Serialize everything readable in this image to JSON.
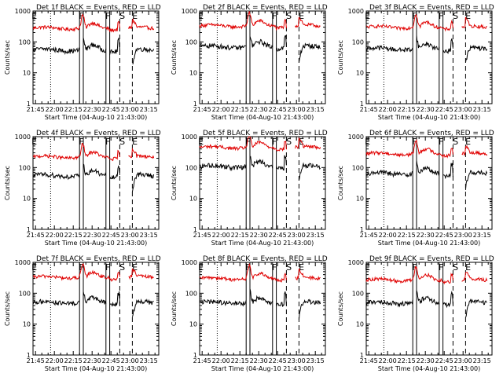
{
  "figure": {
    "xlabel_template": "Start Time (04-Aug-10 21:43:00)",
    "ylabel": "Counts/sec",
    "title_suffix": " BLACK = Events, RED = LLD",
    "tick_labels_x": [
      "21:45",
      "22:00",
      "22:15",
      "22:30",
      "22:45",
      "23:00",
      "23:15"
    ],
    "tick_labels_y": [
      "1000",
      "100",
      "10",
      "1"
    ],
    "colors": {
      "events": "#000000",
      "lld": "#e00000",
      "axes": "#000000"
    },
    "marker_letters": {
      "front": "F",
      "saa": "S",
      "eclipse": "E"
    }
  },
  "chart_data": [
    {
      "type": "line",
      "title": "Det 1f BLACK = Events, RED = LLD",
      "xlabel": "Start Time (04-Aug-10 21:43:00)",
      "ylabel": "Counts/sec",
      "yscale": "log",
      "ylim": [
        1,
        1000
      ],
      "xlim_minutes": [
        0,
        100
      ],
      "series": [
        {
          "name": "BLACK = Events",
          "level": 55
        },
        {
          "name": "RED = LLD",
          "level": 280
        }
      ]
    },
    {
      "type": "line",
      "title": "Det 2f BLACK = Events, RED = LLD",
      "xlabel": "Start Time (04-Aug-10 21:43:00)",
      "ylabel": "Counts/sec",
      "yscale": "log",
      "ylim": [
        1,
        1000
      ],
      "xlim_minutes": [
        0,
        100
      ],
      "series": [
        {
          "name": "BLACK = Events",
          "level": 70
        },
        {
          "name": "RED = LLD",
          "level": 330
        }
      ]
    },
    {
      "type": "line",
      "title": "Det 3f BLACK = Events, RED = LLD",
      "xlabel": "Start Time (04-Aug-10 21:43:00)",
      "ylabel": "Counts/sec",
      "yscale": "log",
      "ylim": [
        1,
        1000
      ],
      "xlim_minutes": [
        0,
        100
      ],
      "series": [
        {
          "name": "BLACK = Events",
          "level": 60
        },
        {
          "name": "RED = LLD",
          "level": 300
        }
      ]
    },
    {
      "type": "line",
      "title": "Det 4f BLACK = Events, RED = LLD",
      "xlabel": "Start Time (04-Aug-10 21:43:00)",
      "ylabel": "Counts/sec",
      "yscale": "log",
      "ylim": [
        1,
        1000
      ],
      "xlim_minutes": [
        0,
        100
      ],
      "series": [
        {
          "name": "BLACK = Events",
          "level": 55
        },
        {
          "name": "RED = LLD",
          "level": 220
        }
      ]
    },
    {
      "type": "line",
      "title": "Det 5f BLACK = Events, RED = LLD",
      "xlabel": "Start Time (04-Aug-10 21:43:00)",
      "ylabel": "Counts/sec",
      "yscale": "log",
      "ylim": [
        1,
        1000
      ],
      "xlim_minutes": [
        0,
        100
      ],
      "series": [
        {
          "name": "BLACK = Events",
          "level": 110
        },
        {
          "name": "RED = LLD",
          "level": 450
        }
      ]
    },
    {
      "type": "line",
      "title": "Det 6f BLACK = Events, RED = LLD",
      "xlabel": "Start Time (04-Aug-10 21:43:00)",
      "ylabel": "Counts/sec",
      "yscale": "log",
      "ylim": [
        1,
        1000
      ],
      "xlim_minutes": [
        0,
        100
      ],
      "series": [
        {
          "name": "BLACK = Events",
          "level": 65
        },
        {
          "name": "RED = LLD",
          "level": 280
        }
      ]
    },
    {
      "type": "line",
      "title": "Det 7f BLACK = Events, RED = LLD",
      "xlabel": "Start Time (04-Aug-10 21:43:00)",
      "ylabel": "Counts/sec",
      "yscale": "log",
      "ylim": [
        1,
        1000
      ],
      "xlim_minutes": [
        0,
        100
      ],
      "series": [
        {
          "name": "BLACK = Events",
          "level": 50
        },
        {
          "name": "RED = LLD",
          "level": 330
        }
      ]
    },
    {
      "type": "line",
      "title": "Det 8f BLACK = Events, RED = LLD",
      "xlabel": "Start Time (04-Aug-10 21:43:00)",
      "ylabel": "Counts/sec",
      "yscale": "log",
      "ylim": [
        1,
        1000
      ],
      "xlim_minutes": [
        0,
        100
      ],
      "series": [
        {
          "name": "BLACK = Events",
          "level": 50
        },
        {
          "name": "RED = LLD",
          "level": 300
        }
      ]
    },
    {
      "type": "line",
      "title": "Det 9f BLACK = Events, RED = LLD",
      "xlabel": "Start Time (04-Aug-10 21:43:00)",
      "ylabel": "Counts/sec",
      "yscale": "log",
      "ylim": [
        1,
        1000
      ],
      "xlim_minutes": [
        0,
        100
      ],
      "series": [
        {
          "name": "BLACK = Events",
          "level": 50
        },
        {
          "name": "RED = LLD",
          "level": 270
        }
      ]
    }
  ],
  "markers": {
    "dotted_minutes": [
      14
    ],
    "solid_minutes": [
      37,
      40,
      58,
      61
    ],
    "dashed_minutes": [
      69,
      79
    ],
    "letters": [
      {
        "letter": "E",
        "minute": 1
      },
      {
        "letter": "F",
        "minute": 38.5
      },
      {
        "letter": "F",
        "minute": 59.5
      },
      {
        "letter": "S",
        "minute": 71
      },
      {
        "letter": "E",
        "minute": 81
      }
    ]
  }
}
